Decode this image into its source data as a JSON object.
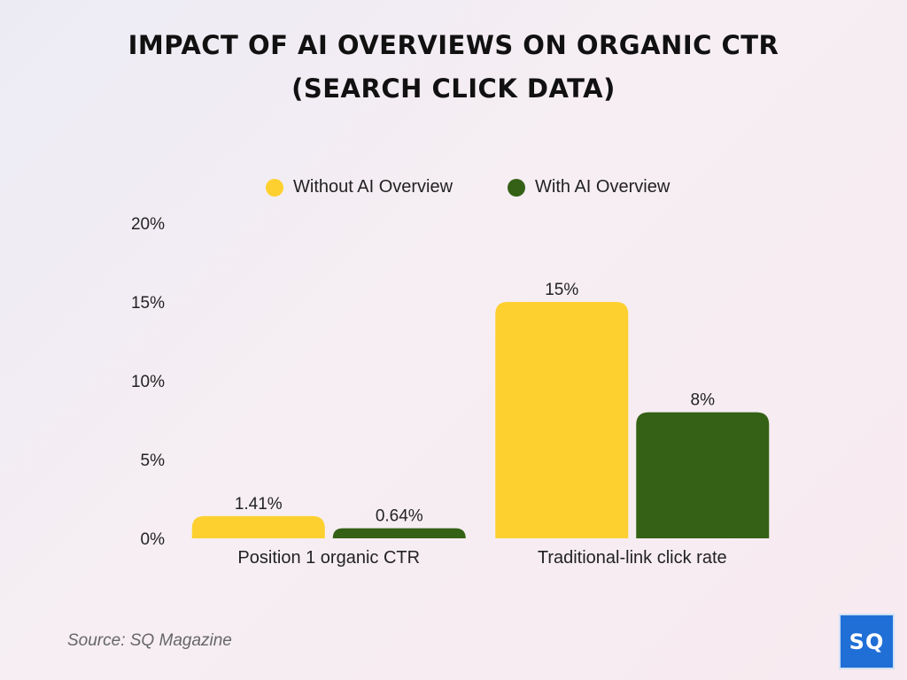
{
  "header": {
    "title_line1": "IMPACT OF AI OVERVIEWS ON ORGANIC CTR",
    "title_line2": "(SEARCH CLICK DATA)"
  },
  "colors": {
    "without": "#fdd02f",
    "with": "#356117"
  },
  "chart_data": {
    "type": "bar",
    "categories": [
      "Position 1 organic CTR",
      "Traditional-link click rate"
    ],
    "series": [
      {
        "name": "Without AI Overview",
        "values": [
          1.41,
          15
        ],
        "labels": [
          "1.41%",
          "15%"
        ]
      },
      {
        "name": "With AI Overview",
        "values": [
          0.64,
          8
        ],
        "labels": [
          "0.64%",
          "8%"
        ]
      }
    ],
    "ylim": [
      0,
      20
    ],
    "yticks": [
      0,
      5,
      10,
      15,
      20
    ],
    "ytick_labels": [
      "0%",
      "5%",
      "10%",
      "15%",
      "20%"
    ],
    "legend_position": "top-center",
    "grid": false
  },
  "footer": {
    "source": "Source: SQ Magazine",
    "logo_text": "SQ"
  }
}
